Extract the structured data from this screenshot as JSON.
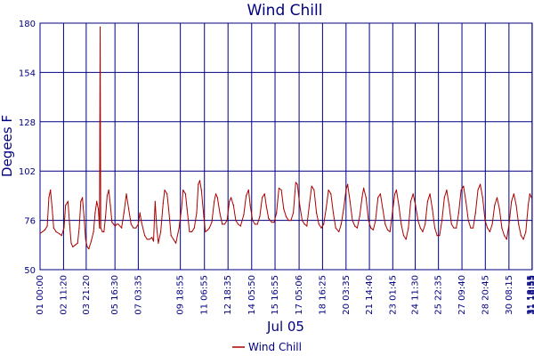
{
  "chart_data": {
    "type": "line",
    "title": "Wind Chill",
    "ylabel": "Degees F",
    "xlabel": "Jul 05",
    "ylim": [
      50,
      180
    ],
    "yticks": [
      50,
      76,
      102,
      128,
      154,
      180
    ],
    "ytick_labels": [
      "50",
      "76",
      "102",
      "128",
      "154",
      "180"
    ],
    "xlim": [
      0,
      30.8
    ],
    "grid": true,
    "legend_position": "bottom-center",
    "colors": {
      "axis": "#000080",
      "grid": "#000080",
      "series": "#aa0000",
      "background": "#ffffff"
    },
    "x_ticks": [
      {
        "x": 0.0,
        "label": "01 00:00"
      },
      {
        "x": 1.472,
        "label": "02 11:20"
      },
      {
        "x": 2.889,
        "label": "03 21:20"
      },
      {
        "x": 4.688,
        "label": "05 16:30"
      },
      {
        "x": 6.148,
        "label": "07 03:35"
      },
      {
        "x": 8.78,
        "label": "09 18:55"
      },
      {
        "x": 10.288,
        "label": "11 06:55"
      },
      {
        "x": 11.763,
        "label": "12 18:35"
      },
      {
        "x": 13.243,
        "label": "14 05:50"
      },
      {
        "x": 14.705,
        "label": "15 16:55"
      },
      {
        "x": 16.212,
        "label": "17 05:06"
      },
      {
        "x": 17.678,
        "label": "18 16:25"
      },
      {
        "x": 19.149,
        "label": "20 03:35"
      },
      {
        "x": 20.611,
        "label": "21 14:40"
      },
      {
        "x": 22.073,
        "label": "23 01:45"
      },
      {
        "x": 23.479,
        "label": "24 11:30"
      },
      {
        "x": 24.932,
        "label": "25 22:35"
      },
      {
        "x": 26.403,
        "label": "27 09:40"
      },
      {
        "x": 27.865,
        "label": "28 20:45"
      },
      {
        "x": 29.344,
        "label": "30 08:15"
      },
      {
        "x": 30.788,
        "label": "31 18:55"
      }
    ],
    "x_tick_labels_extra": [
      "31 18:55",
      "31 18:55"
    ],
    "series": [
      {
        "name": "Wind Chill",
        "x_unit": "days since Jul 01 00:00",
        "points": [
          [
            0.0,
            69
          ],
          [
            0.15,
            70
          ],
          [
            0.3,
            71
          ],
          [
            0.45,
            73
          ],
          [
            0.55,
            88
          ],
          [
            0.65,
            92
          ],
          [
            0.75,
            83
          ],
          [
            0.85,
            72
          ],
          [
            1.0,
            70
          ],
          [
            1.2,
            69
          ],
          [
            1.35,
            68
          ],
          [
            1.5,
            72
          ],
          [
            1.6,
            84
          ],
          [
            1.75,
            86
          ],
          [
            1.85,
            74
          ],
          [
            1.95,
            64
          ],
          [
            2.05,
            62
          ],
          [
            2.2,
            63
          ],
          [
            2.35,
            64
          ],
          [
            2.45,
            72
          ],
          [
            2.55,
            86
          ],
          [
            2.65,
            88
          ],
          [
            2.75,
            78
          ],
          [
            2.85,
            66
          ],
          [
            2.95,
            62
          ],
          [
            3.05,
            61
          ],
          [
            3.2,
            65
          ],
          [
            3.35,
            70
          ],
          [
            3.45,
            80
          ],
          [
            3.55,
            86
          ],
          [
            3.65,
            82
          ],
          [
            3.72,
            72
          ],
          [
            3.76,
            178
          ],
          [
            3.8,
            72
          ],
          [
            3.9,
            70
          ],
          [
            4.0,
            70
          ],
          [
            4.1,
            78
          ],
          [
            4.2,
            89
          ],
          [
            4.3,
            92
          ],
          [
            4.4,
            84
          ],
          [
            4.5,
            75
          ],
          [
            4.6,
            74
          ],
          [
            4.7,
            73
          ],
          [
            4.8,
            74
          ],
          [
            4.9,
            74
          ],
          [
            5.1,
            72
          ],
          [
            5.25,
            80
          ],
          [
            5.4,
            90
          ],
          [
            5.55,
            82
          ],
          [
            5.7,
            74
          ],
          [
            5.85,
            72
          ],
          [
            6.0,
            72
          ],
          [
            6.15,
            74
          ],
          [
            6.25,
            80
          ],
          [
            6.35,
            75
          ],
          [
            6.55,
            68
          ],
          [
            6.7,
            66
          ],
          [
            6.85,
            66
          ],
          [
            7.0,
            67
          ],
          [
            7.1,
            65
          ],
          [
            7.2,
            86
          ],
          [
            7.3,
            72
          ],
          [
            7.4,
            64
          ],
          [
            7.55,
            70
          ],
          [
            7.7,
            85
          ],
          [
            7.8,
            92
          ],
          [
            7.95,
            90
          ],
          [
            8.05,
            82
          ],
          [
            8.2,
            68
          ],
          [
            8.35,
            66
          ],
          [
            8.5,
            64
          ],
          [
            8.7,
            72
          ],
          [
            8.85,
            82
          ],
          [
            8.95,
            92
          ],
          [
            9.1,
            90
          ],
          [
            9.2,
            82
          ],
          [
            9.35,
            70
          ],
          [
            9.5,
            70
          ],
          [
            9.65,
            72
          ],
          [
            9.8,
            80
          ],
          [
            9.9,
            95
          ],
          [
            10.0,
            97
          ],
          [
            10.1,
            92
          ],
          [
            10.25,
            78
          ],
          [
            10.35,
            70
          ],
          [
            10.5,
            71
          ],
          [
            10.6,
            72
          ],
          [
            10.75,
            75
          ],
          [
            10.9,
            86
          ],
          [
            11.0,
            90
          ],
          [
            11.1,
            88
          ],
          [
            11.25,
            80
          ],
          [
            11.4,
            74
          ],
          [
            11.55,
            74
          ],
          [
            11.7,
            76
          ],
          [
            11.85,
            86
          ],
          [
            11.95,
            88
          ],
          [
            12.1,
            84
          ],
          [
            12.25,
            76
          ],
          [
            12.4,
            74
          ],
          [
            12.55,
            73
          ],
          [
            12.75,
            79
          ],
          [
            12.9,
            89
          ],
          [
            13.05,
            92
          ],
          [
            13.15,
            84
          ],
          [
            13.3,
            76
          ],
          [
            13.45,
            74
          ],
          [
            13.6,
            74
          ],
          [
            13.75,
            78
          ],
          [
            13.9,
            88
          ],
          [
            14.05,
            90
          ],
          [
            14.15,
            84
          ],
          [
            14.3,
            77
          ],
          [
            14.5,
            75
          ],
          [
            14.65,
            75
          ],
          [
            14.8,
            80
          ],
          [
            14.95,
            93
          ],
          [
            15.1,
            92
          ],
          [
            15.25,
            82
          ],
          [
            15.4,
            78
          ],
          [
            15.55,
            76
          ],
          [
            15.7,
            76
          ],
          [
            15.85,
            80
          ],
          [
            16.0,
            96
          ],
          [
            16.1,
            95
          ],
          [
            16.25,
            84
          ],
          [
            16.4,
            76
          ],
          [
            16.55,
            74
          ],
          [
            16.7,
            73
          ],
          [
            16.85,
            84
          ],
          [
            17.0,
            94
          ],
          [
            17.15,
            92
          ],
          [
            17.3,
            80
          ],
          [
            17.45,
            74
          ],
          [
            17.6,
            72
          ],
          [
            17.75,
            74
          ],
          [
            17.9,
            82
          ],
          [
            18.05,
            92
          ],
          [
            18.2,
            90
          ],
          [
            18.35,
            80
          ],
          [
            18.5,
            72
          ],
          [
            18.7,
            70
          ],
          [
            18.85,
            74
          ],
          [
            19.0,
            82
          ],
          [
            19.15,
            92
          ],
          [
            19.25,
            95
          ],
          [
            19.4,
            86
          ],
          [
            19.55,
            76
          ],
          [
            19.7,
            73
          ],
          [
            19.85,
            72
          ],
          [
            20.0,
            78
          ],
          [
            20.15,
            88
          ],
          [
            20.25,
            93
          ],
          [
            20.4,
            88
          ],
          [
            20.55,
            76
          ],
          [
            20.7,
            72
          ],
          [
            20.85,
            71
          ],
          [
            21.0,
            76
          ],
          [
            21.15,
            88
          ],
          [
            21.3,
            90
          ],
          [
            21.45,
            82
          ],
          [
            21.6,
            74
          ],
          [
            21.75,
            71
          ],
          [
            21.9,
            70
          ],
          [
            22.05,
            80
          ],
          [
            22.2,
            90
          ],
          [
            22.3,
            92
          ],
          [
            22.45,
            84
          ],
          [
            22.6,
            74
          ],
          [
            22.75,
            68
          ],
          [
            22.9,
            66
          ],
          [
            23.05,
            72
          ],
          [
            23.2,
            86
          ],
          [
            23.35,
            90
          ],
          [
            23.5,
            84
          ],
          [
            23.65,
            76
          ],
          [
            23.8,
            72
          ],
          [
            23.95,
            70
          ],
          [
            24.1,
            74
          ],
          [
            24.25,
            86
          ],
          [
            24.4,
            90
          ],
          [
            24.55,
            82
          ],
          [
            24.7,
            72
          ],
          [
            24.85,
            68
          ],
          [
            25.0,
            68
          ],
          [
            25.15,
            76
          ],
          [
            25.3,
            88
          ],
          [
            25.45,
            92
          ],
          [
            25.6,
            84
          ],
          [
            25.75,
            74
          ],
          [
            25.9,
            72
          ],
          [
            26.05,
            72
          ],
          [
            26.2,
            80
          ],
          [
            26.35,
            92
          ],
          [
            26.5,
            94
          ],
          [
            26.65,
            86
          ],
          [
            26.8,
            76
          ],
          [
            26.95,
            72
          ],
          [
            27.1,
            72
          ],
          [
            27.25,
            80
          ],
          [
            27.4,
            92
          ],
          [
            27.55,
            95
          ],
          [
            27.7,
            88
          ],
          [
            27.85,
            76
          ],
          [
            28.0,
            72
          ],
          [
            28.15,
            70
          ],
          [
            28.3,
            74
          ],
          [
            28.45,
            84
          ],
          [
            28.6,
            88
          ],
          [
            28.75,
            82
          ],
          [
            28.9,
            72
          ],
          [
            29.05,
            68
          ],
          [
            29.2,
            66
          ],
          [
            29.35,
            74
          ],
          [
            29.5,
            86
          ],
          [
            29.65,
            90
          ],
          [
            29.8,
            84
          ],
          [
            29.95,
            74
          ],
          [
            30.1,
            68
          ],
          [
            30.25,
            66
          ],
          [
            30.4,
            70
          ],
          [
            30.55,
            84
          ],
          [
            30.65,
            90
          ],
          [
            30.75,
            88
          ]
        ]
      }
    ]
  }
}
